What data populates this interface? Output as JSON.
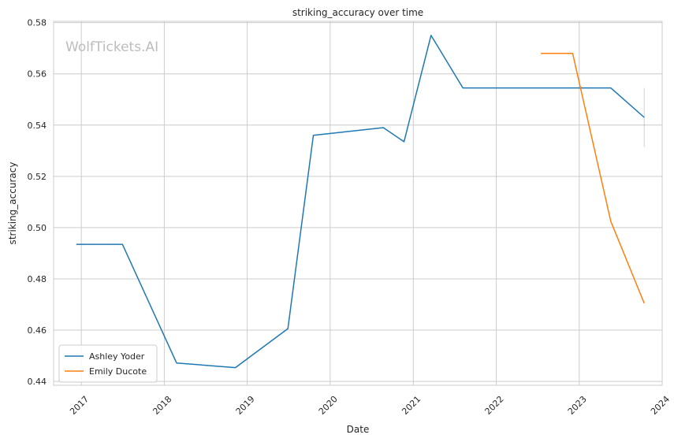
{
  "chart_data": {
    "type": "line",
    "title": "striking_accuracy over time",
    "xlabel": "Date",
    "ylabel": "striking_accuracy",
    "watermark": "WolfTickets.AI",
    "xlim": [
      "2016-09-01",
      "2024-01-01"
    ],
    "ylim": [
      0.4385,
      0.5805
    ],
    "x_ticks": [
      "2017",
      "2018",
      "2019",
      "2020",
      "2021",
      "2022",
      "2023",
      "2024"
    ],
    "y_ticks": [
      "0.44",
      "0.46",
      "0.48",
      "0.50",
      "0.52",
      "0.54",
      "0.56",
      "0.58"
    ],
    "grid": true,
    "legend_position": "lower-left",
    "series": [
      {
        "name": "Ashley Yoder",
        "color": "#1f77b4",
        "points": [
          [
            "2016-12-10",
            0.4935
          ],
          [
            "2017-07-01",
            0.4935
          ],
          [
            "2018-02-24",
            0.4472
          ],
          [
            "2018-11-10",
            0.4454
          ],
          [
            "2019-06-29",
            0.4606
          ],
          [
            "2019-10-19",
            0.536
          ],
          [
            "2020-08-22",
            0.539
          ],
          [
            "2020-11-21",
            0.5335
          ],
          [
            "2021-03-20",
            0.575
          ],
          [
            "2021-08-07",
            0.5545
          ],
          [
            "2023-05-20",
            0.5545
          ],
          [
            "2023-10-14",
            0.543
          ]
        ],
        "errorbar": {
          "x": "2023-10-14",
          "low": 0.5315,
          "high": 0.5545
        }
      },
      {
        "name": "Emily Ducote",
        "color": "#ff7f0e",
        "points": [
          [
            "2022-07-16",
            0.568
          ],
          [
            "2022-12-03",
            0.568
          ],
          [
            "2023-05-20",
            0.5025
          ],
          [
            "2023-10-14",
            0.4705
          ]
        ]
      }
    ]
  }
}
